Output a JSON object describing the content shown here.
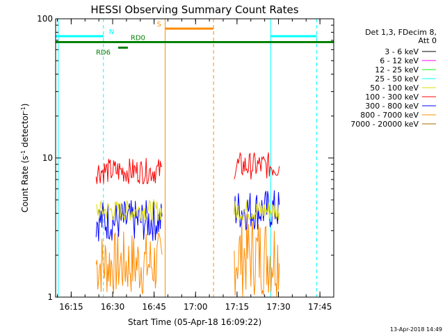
{
  "chart_data": {
    "type": "line",
    "title": "HESSI Observing Summary Count Rates",
    "xlabel": "Start Time (05-Apr-18 16:09:22)",
    "ylabel": "Count Rate (s⁻¹ detector⁻¹)",
    "ylabel_parts": [
      "Count Rate (s",
      "-1",
      " detector",
      "-1",
      ")"
    ],
    "y_scale": "log",
    "ylim": [
      1,
      100
    ],
    "xlim": [
      "16:09:22",
      "17:50:00"
    ],
    "x_ticks": [
      "16:15",
      "16:30",
      "16:45",
      "17:00",
      "17:15",
      "17:30",
      "17:45"
    ],
    "y_ticks": [
      "1",
      "10",
      "100"
    ],
    "grid": false,
    "legend_position": "right",
    "legend_header": [
      "Det 1,3, FDecim 8,",
      "Att 0"
    ],
    "series": [
      {
        "name": "3 - 6 keV",
        "color": "#000000",
        "segments": []
      },
      {
        "name": "6 - 12 keV",
        "color": "#ff00ff",
        "segments": []
      },
      {
        "name": "12 - 25 keV",
        "color": "#00ff00",
        "segments": []
      },
      {
        "name": "25 - 50 keV",
        "color": "#00ffff",
        "segments": []
      },
      {
        "name": "50 - 100 keV",
        "color": "#dddd00",
        "segments": [
          {
            "x": [
              "16:24:00",
              "16:48:00"
            ],
            "y": [
              3.5,
              5
            ]
          },
          {
            "x": [
              "17:14:00",
              "17:30:30"
            ],
            "y": [
              3.5,
              5
            ]
          }
        ]
      },
      {
        "name": "100 - 300 keV",
        "color": "#ff0000",
        "segments": [
          {
            "x": [
              "16:24:00",
              "16:48:00"
            ],
            "y": [
              6.5,
              10
            ]
          },
          {
            "x": [
              "17:14:00",
              "17:30:30"
            ],
            "y": [
              7,
              11
            ]
          }
        ]
      },
      {
        "name": "300 - 800 keV",
        "color": "#0000ff",
        "segments": [
          {
            "x": [
              "16:24:00",
              "16:48:00"
            ],
            "y": [
              2.5,
              5
            ]
          },
          {
            "x": [
              "17:14:00",
              "17:30:30"
            ],
            "y": [
              3,
              6
            ]
          }
        ]
      },
      {
        "name": "800 - 7000 keV",
        "color": "#ff8c00",
        "segments": [
          {
            "x": [
              "16:24:00",
              "16:48:00"
            ],
            "y": [
              1,
              3
            ]
          },
          {
            "x": [
              "17:14:00",
              "17:30:30"
            ],
            "y": [
              1,
              4
            ]
          }
        ]
      },
      {
        "name": "7000 - 20000 keV",
        "color": "#aa6600",
        "segments": []
      }
    ],
    "vertical_lines": [
      {
        "time": "16:10:20",
        "color": "#00ffff",
        "style": "solid"
      },
      {
        "time": "16:26:40",
        "color": "#00ffff",
        "style": "dashed"
      },
      {
        "time": "16:49:00",
        "color": "#ff8c00",
        "style": "solid"
      },
      {
        "time": "17:06:30",
        "color": "#ff8c00",
        "style": "dashed"
      },
      {
        "time": "17:27:10",
        "color": "#00ffff",
        "style": "solid"
      },
      {
        "time": "17:43:50",
        "color": "#00ffff",
        "style": "dashed"
      }
    ],
    "flag_bars": [
      {
        "label": "N",
        "color": "#00ffff",
        "y": 75,
        "ranges": [
          [
            "16:09:22",
            "16:26:40"
          ],
          [
            "17:27:10",
            "17:43:50"
          ]
        ]
      },
      {
        "label": "S",
        "color": "#ff8c00",
        "y": 85,
        "ranges": [
          [
            "16:49:00",
            "17:06:30"
          ]
        ]
      },
      {
        "label": "RD6",
        "color": "#008000",
        "y": 62,
        "ranges": [
          [
            "16:32:00",
            "16:35:30"
          ]
        ]
      },
      {
        "label": "RD0",
        "color": "#008000",
        "y": 68,
        "ranges": [
          [
            "16:09:22",
            "17:50:00"
          ]
        ]
      }
    ],
    "annotations": [
      "13-Apr-2018 14:49"
    ]
  }
}
